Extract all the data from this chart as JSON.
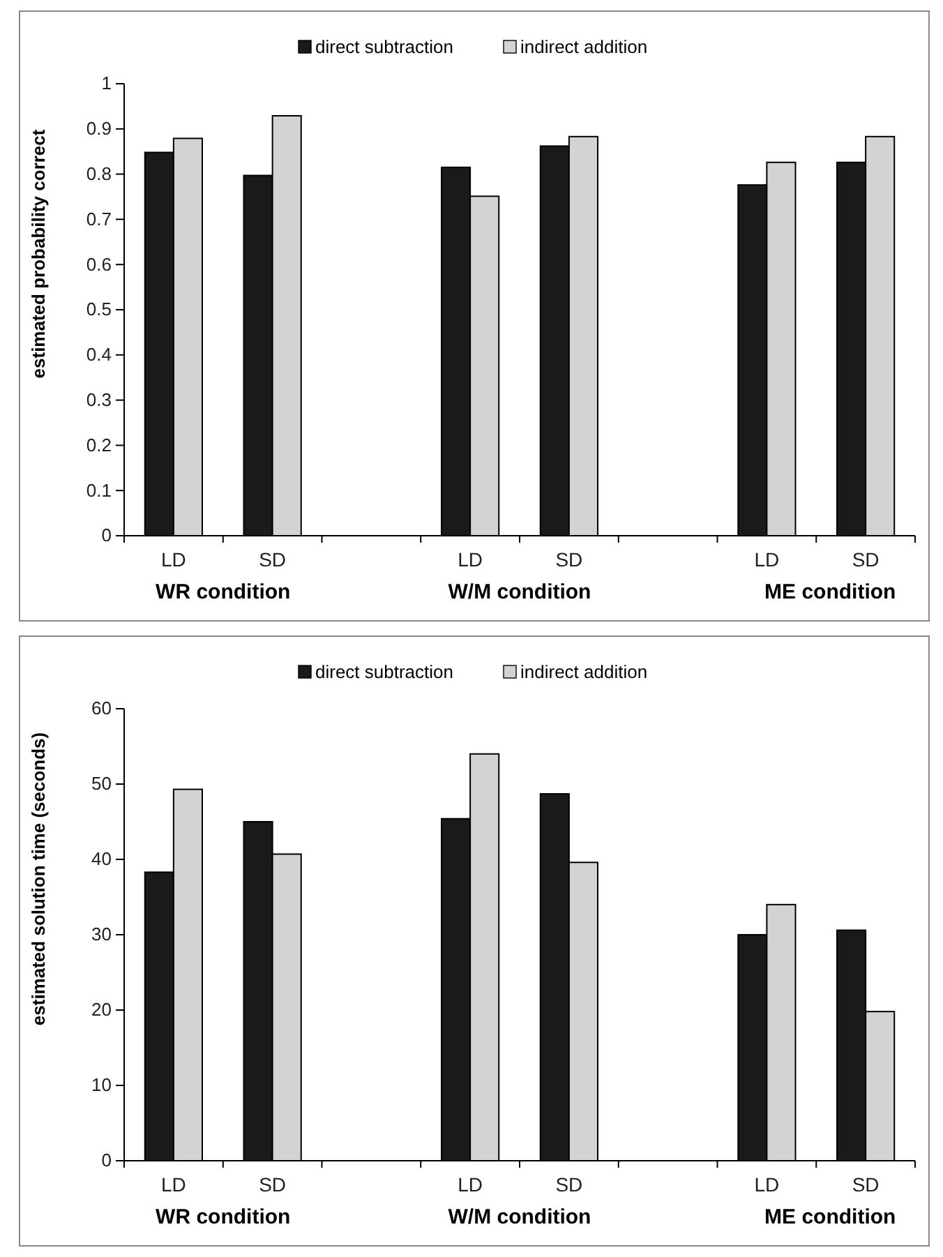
{
  "chart_data": [
    {
      "type": "bar",
      "ylabel": "estimated  probability correct",
      "categories": [
        "LD",
        "SD",
        null,
        "LD",
        "SD",
        null,
        "LD",
        "SD"
      ],
      "series": [
        {
          "name": "direct subtraction",
          "color": "#1a1a1a",
          "values": [
            0.848,
            0.797,
            null,
            0.815,
            0.862,
            null,
            0.776,
            0.826
          ]
        },
        {
          "name": "indirect addition",
          "color": "#d3d3d3",
          "values": [
            0.879,
            0.929,
            null,
            0.751,
            0.883,
            null,
            0.826,
            0.883
          ]
        }
      ],
      "ylim": [
        0,
        1
      ],
      "yticks": [
        0,
        0.1,
        0.2,
        0.3,
        0.4,
        0.5,
        0.6,
        0.7,
        0.8,
        0.9,
        1
      ],
      "legend": "top",
      "annotations": [
        "WR condition",
        "W/M condition",
        "ME condition"
      ]
    },
    {
      "type": "bar",
      "ylabel": "estimated  solution time (seconds)",
      "categories": [
        "LD",
        "SD",
        null,
        "LD",
        "SD",
        null,
        "LD",
        "SD"
      ],
      "series": [
        {
          "name": "direct subtraction",
          "color": "#1a1a1a",
          "values": [
            38.3,
            45,
            null,
            45.4,
            48.7,
            null,
            30,
            30.6
          ]
        },
        {
          "name": "indirect addition",
          "color": "#d3d3d3",
          "values": [
            49.3,
            40.7,
            null,
            54,
            39.6,
            null,
            34,
            19.8
          ]
        }
      ],
      "ylim": [
        0,
        60
      ],
      "yticks": [
        0,
        10,
        20,
        30,
        40,
        50,
        60
      ],
      "legend": "top",
      "annotations": [
        "WR condition",
        "W/M condition",
        "ME condition"
      ]
    }
  ]
}
